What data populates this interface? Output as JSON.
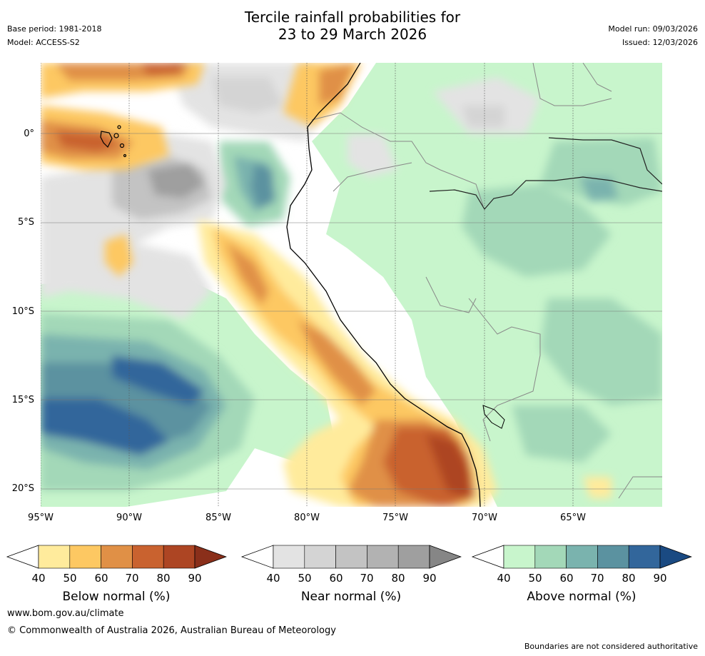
{
  "header": {
    "title_line1": "Tercile rainfall probabilities for",
    "title_line2": "23 to 29 March 2026",
    "base_period": "Base period: 1981-2018",
    "model": "Model: ACCESS-S2",
    "model_run": "Model run: 09/03/2026",
    "issued": "Issued: 12/03/2026"
  },
  "map": {
    "lat_labels": [
      "0°",
      "5°S",
      "10°S",
      "15°S",
      "20°S"
    ],
    "lon_labels": [
      "95°W",
      "90°W",
      "85°W",
      "80°W",
      "75°W",
      "70°W",
      "65°W"
    ]
  },
  "colorbars": [
    {
      "name": "below",
      "title": "Below normal (%)",
      "ticks": [
        "40",
        "50",
        "60",
        "70",
        "80",
        "90"
      ],
      "colors": [
        "#ffffff",
        "#ffeb9c",
        "#fdc862",
        "#e09046",
        "#c9622f",
        "#ad4523",
        "#8a2f1a"
      ]
    },
    {
      "name": "near",
      "title": "Near normal (%)",
      "ticks": [
        "40",
        "50",
        "60",
        "70",
        "80",
        "90"
      ],
      "colors": [
        "#ffffff",
        "#e3e3e3",
        "#d4d4d4",
        "#c3c3c3",
        "#b2b2b2",
        "#9f9f9f",
        "#868686"
      ]
    },
    {
      "name": "above",
      "title": "Above normal (%)",
      "ticks": [
        "40",
        "50",
        "60",
        "70",
        "80",
        "90"
      ],
      "colors": [
        "#ffffff",
        "#c8f5cc",
        "#a3d8b8",
        "#7ab3ae",
        "#5b92a0",
        "#32669b",
        "#1a4a82"
      ]
    }
  ],
  "footer": {
    "url": "www.bom.gov.au/climate",
    "copyright": "© Commonwealth of Australia 2026, Australian Bureau of Meteorology",
    "disclaimer": "Boundaries are not considered authoritative"
  }
}
